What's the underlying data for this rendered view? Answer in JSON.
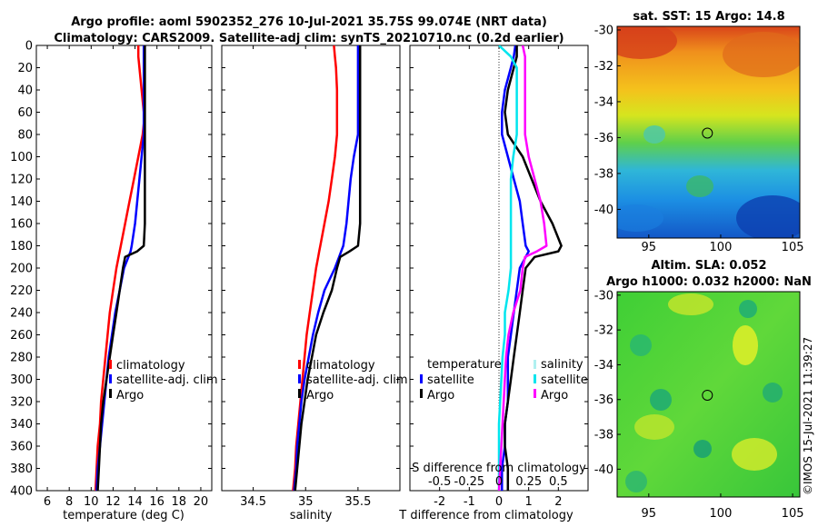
{
  "title": {
    "line1": "Argo profile: aoml 5902352_276 10-Jul-2021 35.75S 99.074E (NRT data)",
    "line2": "Climatology: CARS2009. Satellite-adj clim: synTS_20210710.nc (0.2d earlier)"
  },
  "colors": {
    "climatology": "#ff0000",
    "satellite": "#0000ff",
    "argo": "#000000",
    "s_diff_satellite": "#00e5ee",
    "s_diff_argo": "#ff00ff",
    "s_diff_legend_sal": "#b0f0f0"
  },
  "depth_axis": {
    "ylim": [
      0,
      400
    ],
    "ticks": [
      0,
      20,
      40,
      60,
      80,
      100,
      120,
      140,
      160,
      180,
      200,
      220,
      240,
      260,
      280,
      300,
      320,
      340,
      360,
      380,
      400
    ],
    "tick_labels": [
      "0",
      "20",
      "40",
      "60",
      "80",
      "100",
      "120",
      "140",
      "160",
      "180",
      "200",
      "220",
      "240",
      "260",
      "280",
      "300",
      "320",
      "340",
      "360",
      "380",
      "400"
    ]
  },
  "chart_data": [
    {
      "type": "line",
      "id": "temperature",
      "xlabel": "temperature (deg C)",
      "xlim": [
        5,
        21
      ],
      "xticks": [
        6,
        8,
        10,
        12,
        14,
        16,
        18,
        20
      ],
      "xtick_labels": [
        "6",
        "8",
        "10",
        "12",
        "14",
        "16",
        "18",
        "20"
      ],
      "depth": [
        0,
        10,
        20,
        40,
        60,
        70,
        80,
        100,
        120,
        140,
        160,
        180,
        185,
        190,
        200,
        220,
        240,
        260,
        280,
        300,
        320,
        340,
        360,
        380,
        400
      ],
      "series": [
        {
          "name": "climatology",
          "color_key": "climatology",
          "values": [
            14.3,
            14.3,
            14.4,
            14.6,
            14.8,
            14.8,
            14.7,
            14.3,
            13.9,
            13.5,
            13.1,
            12.7,
            12.6,
            12.5,
            12.3,
            12.0,
            11.7,
            11.5,
            11.3,
            11.1,
            10.9,
            10.8,
            10.6,
            10.5,
            10.4
          ]
        },
        {
          "name": "satellite-adj. clim",
          "color_key": "satellite",
          "values": [
            14.8,
            14.8,
            14.8,
            14.8,
            14.8,
            14.8,
            14.8,
            14.6,
            14.4,
            14.2,
            14.0,
            13.7,
            13.6,
            13.4,
            13.0,
            12.6,
            12.2,
            11.9,
            11.6,
            11.4,
            11.2,
            11.0,
            10.8,
            10.6,
            10.5
          ]
        },
        {
          "name": "Argo",
          "color_key": "argo",
          "values": [
            14.9,
            14.9,
            14.9,
            14.9,
            14.9,
            14.9,
            14.9,
            14.9,
            14.9,
            14.9,
            14.9,
            14.8,
            14.2,
            13.1,
            12.9,
            12.6,
            12.3,
            12.0,
            11.7,
            11.4,
            11.1,
            10.9,
            10.8,
            10.7,
            10.6
          ]
        }
      ],
      "legend": {
        "placement": "lower-right",
        "entries": [
          "climatology",
          "satellite-adj. clim",
          "Argo"
        ]
      }
    },
    {
      "type": "line",
      "id": "salinity",
      "xlabel": "salinity",
      "xlim": [
        34.2,
        35.9
      ],
      "xticks": [
        34.5,
        35,
        35.5
      ],
      "xtick_labels": [
        "34.5",
        "35",
        "35.5"
      ],
      "depth": [
        0,
        10,
        20,
        40,
        60,
        80,
        100,
        120,
        140,
        160,
        180,
        185,
        190,
        200,
        220,
        240,
        260,
        280,
        300,
        320,
        340,
        360,
        380,
        400
      ],
      "series": [
        {
          "name": "climatology",
          "color_key": "climatology",
          "values": [
            35.27,
            35.28,
            35.29,
            35.3,
            35.3,
            35.3,
            35.28,
            35.25,
            35.22,
            35.18,
            35.14,
            35.13,
            35.12,
            35.1,
            35.07,
            35.04,
            35.01,
            34.99,
            34.97,
            34.95,
            34.93,
            34.91,
            34.9,
            34.88
          ]
        },
        {
          "name": "satellite-adj. clim",
          "color_key": "satellite",
          "values": [
            35.5,
            35.5,
            35.5,
            35.5,
            35.5,
            35.5,
            35.46,
            35.43,
            35.41,
            35.39,
            35.36,
            35.34,
            35.32,
            35.28,
            35.18,
            35.12,
            35.07,
            35.03,
            34.99,
            34.96,
            34.94,
            34.92,
            34.91,
            34.89
          ]
        },
        {
          "name": "Argo",
          "color_key": "argo",
          "values": [
            35.52,
            35.52,
            35.52,
            35.52,
            35.52,
            35.52,
            35.52,
            35.52,
            35.52,
            35.52,
            35.5,
            35.42,
            35.33,
            35.3,
            35.25,
            35.17,
            35.1,
            35.06,
            35.02,
            34.99,
            34.96,
            34.94,
            34.92,
            34.9
          ]
        }
      ],
      "legend": {
        "placement": "lower-right",
        "entries": [
          "climatology",
          "satellite-adj. clim",
          "Argo"
        ]
      }
    },
    {
      "type": "line",
      "id": "difference",
      "xlabel": "T difference from climatology",
      "xlim": [
        -3,
        3
      ],
      "xticks": [
        -2,
        -1,
        0,
        1,
        2
      ],
      "xtick_labels": [
        "-2",
        "-1",
        "0",
        "1",
        "2"
      ],
      "top_xlabel": "S difference from climatology",
      "top_xticks": [
        -0.5,
        -0.25,
        0,
        0.25,
        0.5
      ],
      "top_xtick_labels": [
        "-0.5",
        "-0.25",
        "0",
        "0.25",
        "0.5"
      ],
      "depth": [
        0,
        10,
        20,
        40,
        60,
        80,
        100,
        120,
        140,
        160,
        180,
        185,
        190,
        200,
        220,
        240,
        260,
        280,
        300,
        320,
        340,
        360,
        380,
        400
      ],
      "series": [
        {
          "name": "T satellite",
          "color_key": "satellite",
          "values": [
            0.55,
            0.5,
            0.4,
            0.2,
            0.1,
            0.1,
            0.3,
            0.5,
            0.7,
            0.8,
            0.9,
            1.0,
            0.9,
            0.7,
            0.6,
            0.5,
            0.4,
            0.3,
            0.3,
            0.3,
            0.2,
            0.2,
            0.1,
            0.1
          ]
        },
        {
          "name": "T Argo",
          "color_key": "argo",
          "values": [
            0.6,
            0.6,
            0.5,
            0.3,
            0.2,
            0.3,
            0.8,
            1.1,
            1.4,
            1.8,
            2.1,
            2.0,
            1.2,
            0.9,
            0.8,
            0.7,
            0.6,
            0.5,
            0.4,
            0.3,
            0.2,
            0.2,
            0.3,
            0.3
          ]
        },
        {
          "name": "S satellite",
          "color_key": "s_diff_satellite",
          "values": [
            0.0,
            0.1,
            0.15,
            0.15,
            0.15,
            0.15,
            0.12,
            0.1,
            0.1,
            0.1,
            0.1,
            0.1,
            0.1,
            0.1,
            0.08,
            0.05,
            0.05,
            0.03,
            0.02,
            0.01,
            0.0,
            0.0,
            0.0,
            0.0
          ]
        },
        {
          "name": "S Argo",
          "color_key": "s_diff_argo",
          "values": [
            0.2,
            0.22,
            0.22,
            0.22,
            0.22,
            0.22,
            0.25,
            0.3,
            0.35,
            0.38,
            0.4,
            0.32,
            0.22,
            0.2,
            0.18,
            0.12,
            0.08,
            0.06,
            0.05,
            0.04,
            0.03,
            0.02,
            0.01,
            0.0
          ]
        }
      ],
      "legend": {
        "placement": "lower-right",
        "temperature_header": "temperature",
        "salinity_header": "salinity",
        "entries": [
          "satellite",
          "Argo",
          "satellite",
          "Argo"
        ]
      }
    }
  ],
  "maps": [
    {
      "id": "sst",
      "title_lines": [
        "sat. SST: 15 Argo: 14.8"
      ],
      "xticks": [
        95,
        100,
        105
      ],
      "xtick_labels": [
        "95",
        "100",
        "105"
      ],
      "xlim": [
        92.8,
        105.5
      ],
      "yticks": [
        -30,
        -32,
        -34,
        -36,
        -38,
        -40
      ],
      "ytick_labels": [
        "-30",
        "-32",
        "-34",
        "-36",
        "-38",
        "-40"
      ],
      "ylim": [
        -41.6,
        -29.8
      ],
      "marker": {
        "lon": 99.074,
        "lat": -35.75
      }
    },
    {
      "id": "sla",
      "title_lines": [
        "Altim. SLA: 0.052",
        "Argo h1000: 0.032 h2000: NaN"
      ],
      "xticks": [
        95,
        100,
        105
      ],
      "xtick_labels": [
        "95",
        "100",
        "105"
      ],
      "xlim": [
        92.8,
        105.5
      ],
      "yticks": [
        -30,
        -32,
        -34,
        -36,
        -38,
        -40
      ],
      "ytick_labels": [
        "-30",
        "-32",
        "-34",
        "-36",
        "-38",
        "-40"
      ],
      "ylim": [
        -41.6,
        -29.8
      ],
      "marker": {
        "lon": 99.074,
        "lat": -35.75
      }
    }
  ],
  "credit": "©IMOS 15-Jul-2021 11:39:27"
}
